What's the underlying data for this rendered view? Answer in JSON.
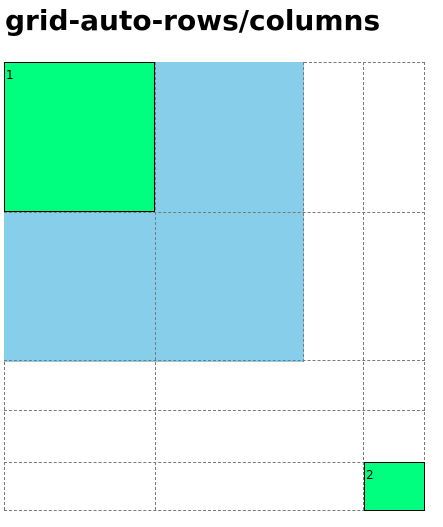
{
  "heading": "grid-auto-rows/columns",
  "grid": {
    "items": [
      {
        "label": "1"
      },
      {
        "label": "2"
      }
    ]
  },
  "colors": {
    "item": "#00ff7f",
    "auto_track_fill": "#87ceeb",
    "item_border": "#000000",
    "grid_lines": "#7a7a7a"
  }
}
